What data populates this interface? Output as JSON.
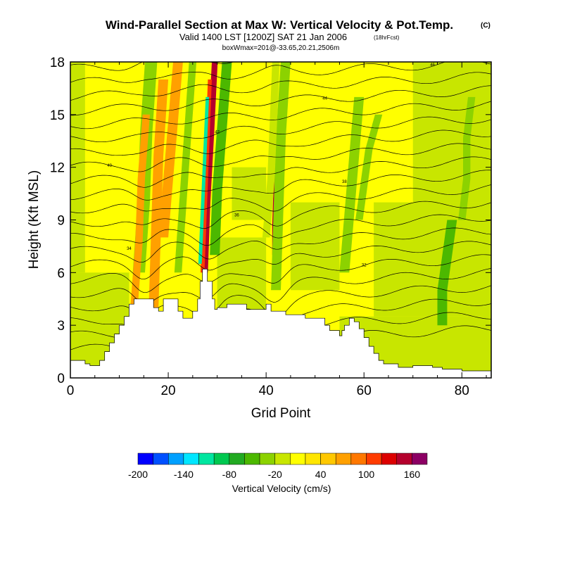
{
  "chart_data": {
    "type": "heatmap",
    "title": "Wind-Parallel Section at Max W: Vertical Velocity & Pot.Temp.",
    "title_mark": "(C)",
    "subtitle": "Valid 1400 LST [1200Z] SAT 21 Jan 2006",
    "subtitle_note": "(18hrFcst)",
    "subtitle2": "boxWmax=201@-33.65,20.21,2506m",
    "xlabel": "Grid Point",
    "ylabel": "Height (Kft MSL)",
    "xlim": [
      0,
      86
    ],
    "ylim": [
      0,
      18
    ],
    "xticks": [
      0,
      20,
      40,
      60,
      80
    ],
    "yticks": [
      0,
      3,
      6,
      9,
      12,
      15,
      18
    ],
    "colorbar": {
      "label": "Vertical Velocity (cm/s)",
      "tick_labels": [
        "-200",
        "-140",
        "-80",
        "-20",
        "40",
        "100",
        "160"
      ],
      "bounds": [
        -200,
        -180,
        -160,
        -140,
        -120,
        -100,
        -80,
        -60,
        -40,
        -20,
        0,
        20,
        40,
        60,
        80,
        100,
        120,
        140,
        160,
        180
      ],
      "colors": [
        "#0000ff",
        "#0050ff",
        "#00a0ff",
        "#00e6ff",
        "#00e6a0",
        "#00c850",
        "#22aa22",
        "#4cb800",
        "#8cd200",
        "#c8e600",
        "#ffff00",
        "#ffe600",
        "#ffc800",
        "#ffa000",
        "#ff7800",
        "#ff3c00",
        "#dc0000",
        "#b4002d",
        "#8c0064"
      ]
    },
    "background_value": 10,
    "cells": [
      {
        "x0": 0,
        "x1": 12,
        "y0": 0,
        "y1": 6,
        "value": -20
      },
      {
        "x0": 0,
        "x1": 3,
        "y0": 6,
        "y1": 18,
        "value": -20
      },
      {
        "x0": 55,
        "x1": 86,
        "y0": 0,
        "y1": 3.5,
        "value": -20
      },
      {
        "x0": 62,
        "x1": 86,
        "y0": 3.5,
        "y1": 10,
        "value": -20
      },
      {
        "x0": 70,
        "x1": 86,
        "y0": 10,
        "y1": 18,
        "value": -20
      },
      {
        "x0": 30,
        "x1": 40,
        "y0": 3.5,
        "y1": 8,
        "value": -20
      },
      {
        "x0": 45,
        "x1": 55,
        "y0": 5,
        "y1": 10,
        "value": -20
      },
      {
        "x0": 33,
        "x1": 40,
        "y0": 9,
        "y1": 12,
        "value": -20
      }
    ],
    "bands": [
      {
        "x": [
          14,
          15,
          15.5,
          16.5
        ],
        "y0": 6,
        "y1": 18,
        "width": 2.5,
        "value": -40
      },
      {
        "x": [
          13,
          14,
          14.5,
          15.5
        ],
        "y0": 4,
        "y1": 15,
        "width": 1.5,
        "value": 60
      },
      {
        "x": [
          17,
          17.5,
          18,
          19
        ],
        "y0": 4,
        "y1": 17,
        "width": 2,
        "value": 60
      },
      {
        "x": [
          19,
          20,
          21,
          22
        ],
        "y0": 8,
        "y1": 18,
        "width": 2,
        "value": 60
      },
      {
        "x": [
          22,
          23,
          24,
          25
        ],
        "y0": 6,
        "y1": 18,
        "width": 1.5,
        "value": -40
      },
      {
        "x": [
          27.5,
          28,
          28.8,
          29.5
        ],
        "y0": 6,
        "y1": 18,
        "width": 1.2,
        "value": 140
      },
      {
        "x": [
          27,
          27.5,
          28,
          28.5
        ],
        "y0": 6,
        "y1": 17,
        "width": 0.8,
        "value": 100
      },
      {
        "x": [
          26.5,
          27,
          27.5,
          28
        ],
        "y0": 6.5,
        "y1": 16,
        "width": 0.7,
        "value": -120
      },
      {
        "x": [
          29.5,
          30,
          31,
          32
        ],
        "y0": 7,
        "y1": 18,
        "width": 2,
        "value": -60
      },
      {
        "x": [
          42,
          42,
          42.2,
          42.5
        ],
        "y0": 7,
        "y1": 12,
        "width": 1.5,
        "value": 140
      },
      {
        "x": [
          41.8,
          42,
          42.1,
          42.3
        ],
        "y0": 7.5,
        "y1": 11,
        "width": 0.7,
        "value": 160
      },
      {
        "x": [
          42,
          42.5,
          43,
          44
        ],
        "y0": 5,
        "y1": 18,
        "width": 2,
        "value": -40
      },
      {
        "x": [
          40,
          41,
          41.5,
          42
        ],
        "y0": 8,
        "y1": 18,
        "width": 1.5,
        "value": -20
      },
      {
        "x": [
          56,
          57,
          58,
          59
        ],
        "y0": 6,
        "y1": 16,
        "width": 2,
        "value": -40
      },
      {
        "x": [
          59,
          60,
          61,
          63
        ],
        "y0": 9,
        "y1": 15,
        "width": 1.5,
        "value": -40
      },
      {
        "x": [
          76,
          76,
          77,
          78
        ],
        "y0": 3,
        "y1": 9,
        "width": 2,
        "value": -60
      },
      {
        "x": [
          80,
          81,
          81,
          82
        ],
        "y0": 9,
        "y1": 16,
        "width": 1.5,
        "value": -40
      },
      {
        "x": [
          85,
          85,
          85,
          85
        ],
        "y0": 0,
        "y1": 18,
        "width": 1.5,
        "value": -20
      }
    ],
    "terrain_top": [
      [
        0,
        1.0
      ],
      [
        3,
        1.0
      ],
      [
        3,
        0.8
      ],
      [
        4,
        0.8
      ],
      [
        4,
        0.7
      ],
      [
        6,
        0.7
      ],
      [
        6,
        1.0
      ],
      [
        7,
        1.0
      ],
      [
        7,
        1.5
      ],
      [
        8,
        1.5
      ],
      [
        8,
        2.0
      ],
      [
        9,
        2.0
      ],
      [
        9,
        2.5
      ],
      [
        10,
        2.5
      ],
      [
        10,
        3.0
      ],
      [
        11,
        3.0
      ],
      [
        11,
        3.5
      ],
      [
        12,
        3.5
      ],
      [
        12,
        4.2
      ],
      [
        13,
        4.2
      ],
      [
        13,
        4.5
      ],
      [
        17,
        4.5
      ],
      [
        17,
        4.0
      ],
      [
        18,
        4.0
      ],
      [
        18,
        3.8
      ],
      [
        19,
        3.8
      ],
      [
        19,
        4.5
      ],
      [
        22,
        4.5
      ],
      [
        22,
        3.8
      ],
      [
        23,
        3.8
      ],
      [
        23,
        3.4
      ],
      [
        25,
        3.4
      ],
      [
        25,
        3.8
      ],
      [
        26,
        3.8
      ],
      [
        26,
        4.5
      ],
      [
        26.5,
        4.5
      ],
      [
        26.5,
        5.5
      ],
      [
        27,
        5.5
      ],
      [
        27,
        6.2
      ],
      [
        28,
        6.2
      ],
      [
        28,
        5.5
      ],
      [
        29,
        5.5
      ],
      [
        29,
        4.5
      ],
      [
        29.5,
        4.5
      ],
      [
        29.5,
        3.9
      ],
      [
        30,
        3.9
      ],
      [
        30,
        4.0
      ],
      [
        32,
        4.0
      ],
      [
        32,
        4.2
      ],
      [
        36,
        4.2
      ],
      [
        36,
        3.9
      ],
      [
        40,
        3.9
      ],
      [
        40,
        4.2
      ],
      [
        41,
        4.2
      ],
      [
        41,
        3.8
      ],
      [
        44,
        3.8
      ],
      [
        44,
        3.6
      ],
      [
        48,
        3.6
      ],
      [
        48,
        3.4
      ],
      [
        52,
        3.4
      ],
      [
        52,
        3.0
      ],
      [
        53,
        3.0
      ],
      [
        53,
        2.7
      ],
      [
        55,
        2.7
      ],
      [
        55,
        2.4
      ],
      [
        55.5,
        2.4
      ],
      [
        55.5,
        2.7
      ],
      [
        56,
        2.7
      ],
      [
        56,
        3.0
      ],
      [
        57,
        3.0
      ],
      [
        57,
        3.4
      ],
      [
        58,
        3.4
      ],
      [
        58,
        3.2
      ],
      [
        59,
        3.2
      ],
      [
        59,
        2.8
      ],
      [
        60,
        2.8
      ],
      [
        60,
        2.3
      ],
      [
        61,
        2.3
      ],
      [
        61,
        1.8
      ],
      [
        62,
        1.8
      ],
      [
        62,
        1.4
      ],
      [
        63,
        1.4
      ],
      [
        63,
        1.0
      ],
      [
        64,
        1.0
      ],
      [
        64,
        0.8
      ],
      [
        67,
        0.8
      ],
      [
        67,
        0.6
      ],
      [
        70,
        0.6
      ],
      [
        70,
        0.7
      ],
      [
        74,
        0.7
      ],
      [
        74,
        0.6
      ],
      [
        76,
        0.6
      ],
      [
        76,
        0.5
      ],
      [
        80,
        0.5
      ],
      [
        80,
        0.4
      ],
      [
        86,
        0.4
      ]
    ],
    "contours": [
      {
        "y_left": 1.6,
        "y_right": 2.8,
        "dip_depth": 3.3,
        "label": ""
      },
      {
        "y_left": 2.4,
        "y_right": 3.6,
        "dip_depth": 3.1,
        "label": ""
      },
      {
        "y_left": 3.2,
        "y_right": 4.4,
        "dip_depth": 2.9,
        "label": "30"
      },
      {
        "y_left": 4.0,
        "y_right": 5.2,
        "dip_depth": 2.7,
        "label": ""
      },
      {
        "y_left": 4.8,
        "y_right": 6.0,
        "dip_depth": 2.5,
        "label": ""
      },
      {
        "y_left": 5.6,
        "y_right": 6.8,
        "dip_depth": 2.3,
        "label": "32"
      },
      {
        "y_left": 6.4,
        "y_right": 7.6,
        "dip_depth": 2.1,
        "label": ""
      },
      {
        "y_left": 7.2,
        "y_right": 8.4,
        "dip_depth": 1.9,
        "label": "34"
      },
      {
        "y_left": 8.0,
        "y_right": 9.2,
        "dip_depth": 1.7,
        "label": ""
      },
      {
        "y_left": 8.8,
        "y_right": 10.0,
        "dip_depth": 1.5,
        "label": "36"
      },
      {
        "y_left": 9.6,
        "y_right": 10.8,
        "dip_depth": 1.3,
        "label": ""
      },
      {
        "y_left": 10.4,
        "y_right": 11.6,
        "dip_depth": 1.1,
        "label": "38"
      },
      {
        "y_left": 11.2,
        "y_right": 12.4,
        "dip_depth": 0.9,
        "label": ""
      },
      {
        "y_left": 12.0,
        "y_right": 13.2,
        "dip_depth": 0.7,
        "label": "40"
      },
      {
        "y_left": 12.8,
        "y_right": 14.0,
        "dip_depth": 0.5,
        "label": ""
      },
      {
        "y_left": 13.6,
        "y_right": 14.8,
        "dip_depth": 0.3,
        "label": "42"
      },
      {
        "y_left": 14.4,
        "y_right": 15.6,
        "dip_depth": 0.1,
        "label": ""
      },
      {
        "y_left": 15.2,
        "y_right": 16.4,
        "dip_depth": -0.1,
        "label": "44"
      },
      {
        "y_left": 16.0,
        "y_right": 17.2,
        "dip_depth": -0.3,
        "label": ""
      },
      {
        "y_left": 16.8,
        "y_right": 18.0,
        "dip_depth": -0.5,
        "label": "46"
      },
      {
        "y_left": 17.6,
        "y_right": 18.8,
        "dip_depth": -0.7,
        "label": ""
      }
    ]
  }
}
